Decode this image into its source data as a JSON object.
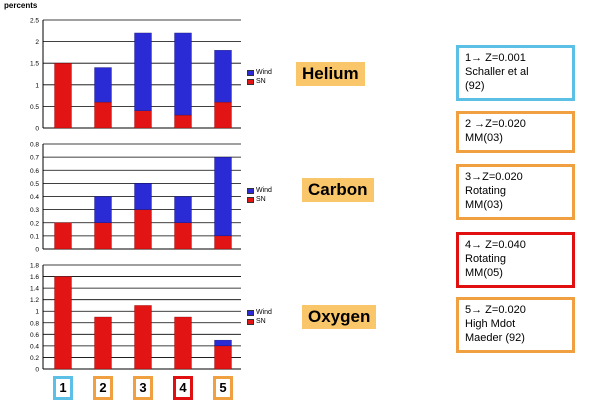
{
  "unit_label": "percents",
  "colors": {
    "wind": "#2b2bd6",
    "sn": "#e31414",
    "label_bg": "#f9c66a",
    "blue": "#5bbfe6",
    "orange": "#f0a040",
    "red": "#e01010"
  },
  "chart_data": [
    {
      "type": "bar",
      "title": "Helium",
      "stacked": true,
      "categories": [
        "1",
        "2",
        "3",
        "4",
        "5"
      ],
      "series": [
        {
          "name": "SN",
          "values": [
            1.5,
            0.6,
            0.4,
            0.3,
            0.6
          ]
        },
        {
          "name": "Wind",
          "values": [
            0,
            0.8,
            1.8,
            1.9,
            1.2
          ]
        }
      ],
      "ylim": [
        0,
        2.5
      ],
      "yticks": [
        "0",
        "0.5",
        "1",
        "1.5",
        "2",
        "2.5"
      ],
      "grid": true,
      "legend": "right"
    },
    {
      "type": "bar",
      "title": "Carbon",
      "stacked": true,
      "categories": [
        "1",
        "2",
        "3",
        "4",
        "5"
      ],
      "series": [
        {
          "name": "SN",
          "values": [
            0.2,
            0.2,
            0.3,
            0.2,
            0.1
          ]
        },
        {
          "name": "Wind",
          "values": [
            0,
            0.2,
            0.2,
            0.2,
            0.6
          ]
        }
      ],
      "ylim": [
        0,
        0.8
      ],
      "yticks": [
        "0",
        "0.1",
        "0.2",
        "0.3",
        "0.4",
        "0.5",
        "0.6",
        "0.7",
        "0.8"
      ],
      "grid": true,
      "legend": "right"
    },
    {
      "type": "bar",
      "title": "Oxygen",
      "stacked": true,
      "categories": [
        "1",
        "2",
        "3",
        "4",
        "5"
      ],
      "series": [
        {
          "name": "SN",
          "values": [
            1.6,
            0.9,
            1.1,
            0.9,
            0.4
          ]
        },
        {
          "name": "Wind",
          "values": [
            0,
            0,
            0,
            0,
            0.1
          ]
        }
      ],
      "ylim": [
        0,
        1.8
      ],
      "yticks": [
        "0",
        "0.2",
        "0.4",
        "0.6",
        "0.8",
        "1",
        "1.2",
        "1.4",
        "1.6",
        "1.8"
      ],
      "grid": true,
      "legend": "right"
    }
  ],
  "models": [
    {
      "lines": [
        "1→ Z=0.001",
        "Schaller et al",
        "(92)"
      ],
      "color": "blue"
    },
    {
      "lines": [
        "2 →Z=0.020",
        "MM(03)"
      ],
      "color": "orange"
    },
    {
      "lines": [
        "3→Z=0.020",
        "Rotating",
        "MM(03)"
      ],
      "color": "orange"
    },
    {
      "lines": [
        "4→ Z=0.040",
        "Rotating",
        "MM(05)"
      ],
      "color": "red"
    },
    {
      "lines": [
        "5→ Z=0.020",
        "High Mdot",
        "Maeder (92)"
      ],
      "color": "orange"
    }
  ],
  "numbers": [
    {
      "label": "1",
      "color": "blue"
    },
    {
      "label": "2",
      "color": "orange"
    },
    {
      "label": "3",
      "color": "orange"
    },
    {
      "label": "4",
      "color": "red"
    },
    {
      "label": "5",
      "color": "orange"
    }
  ]
}
